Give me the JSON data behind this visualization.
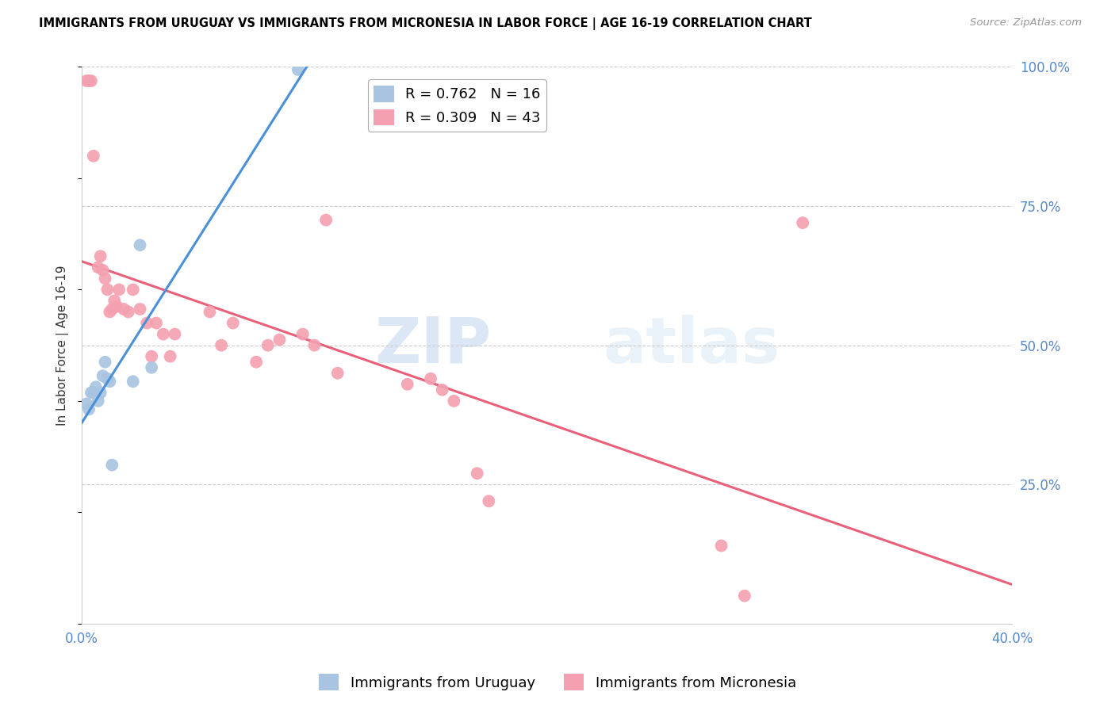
{
  "title": "IMMIGRANTS FROM URUGUAY VS IMMIGRANTS FROM MICRONESIA IN LABOR FORCE | AGE 16-19 CORRELATION CHART",
  "source": "Source: ZipAtlas.com",
  "ylabel": "In Labor Force | Age 16-19",
  "xlim": [
    0.0,
    0.4
  ],
  "ylim": [
    0.0,
    1.0
  ],
  "xtick_vals": [
    0.0,
    0.1,
    0.2,
    0.3,
    0.4
  ],
  "xtick_labels": [
    "0.0%",
    "",
    "",
    "",
    "40.0%"
  ],
  "yticks_right": [
    0.25,
    0.5,
    0.75,
    1.0
  ],
  "ytick_labels_right": [
    "25.0%",
    "50.0%",
    "75.0%",
    "100.0%"
  ],
  "uruguay_R": 0.762,
  "uruguay_N": 16,
  "micronesia_R": 0.309,
  "micronesia_N": 43,
  "uruguay_color": "#a8c4e0",
  "micronesia_color": "#f4a0b0",
  "uruguay_line_color": "#4a90d9",
  "micronesia_line_color": "#e8607a",
  "legend_label_uruguay": "Immigrants from Uruguay",
  "legend_label_micronesia": "Immigrants from Micronesia",
  "watermark_zip": "ZIP",
  "watermark_atlas": "atlas",
  "uruguay_x": [
    0.002,
    0.003,
    0.004,
    0.005,
    0.006,
    0.007,
    0.008,
    0.009,
    0.01,
    0.011,
    0.012,
    0.013,
    0.022,
    0.025,
    0.03,
    0.093
  ],
  "uruguay_y": [
    0.395,
    0.385,
    0.415,
    0.415,
    0.425,
    0.4,
    0.415,
    0.445,
    0.47,
    0.44,
    0.435,
    0.285,
    0.435,
    0.68,
    0.46,
    0.995
  ],
  "micronesia_x": [
    0.002,
    0.003,
    0.004,
    0.005,
    0.007,
    0.008,
    0.009,
    0.01,
    0.011,
    0.012,
    0.013,
    0.014,
    0.015,
    0.016,
    0.018,
    0.02,
    0.022,
    0.025,
    0.028,
    0.03,
    0.032,
    0.035,
    0.038,
    0.04,
    0.055,
    0.06,
    0.065,
    0.075,
    0.08,
    0.085,
    0.095,
    0.1,
    0.105,
    0.11,
    0.14,
    0.15,
    0.155,
    0.16,
    0.17,
    0.175,
    0.275,
    0.285,
    0.31
  ],
  "micronesia_y": [
    0.975,
    0.975,
    0.975,
    0.84,
    0.64,
    0.66,
    0.635,
    0.62,
    0.6,
    0.56,
    0.565,
    0.58,
    0.57,
    0.6,
    0.565,
    0.56,
    0.6,
    0.565,
    0.54,
    0.48,
    0.54,
    0.52,
    0.48,
    0.52,
    0.56,
    0.5,
    0.54,
    0.47,
    0.5,
    0.51,
    0.52,
    0.5,
    0.725,
    0.45,
    0.43,
    0.44,
    0.42,
    0.4,
    0.27,
    0.22,
    0.14,
    0.05,
    0.72
  ]
}
